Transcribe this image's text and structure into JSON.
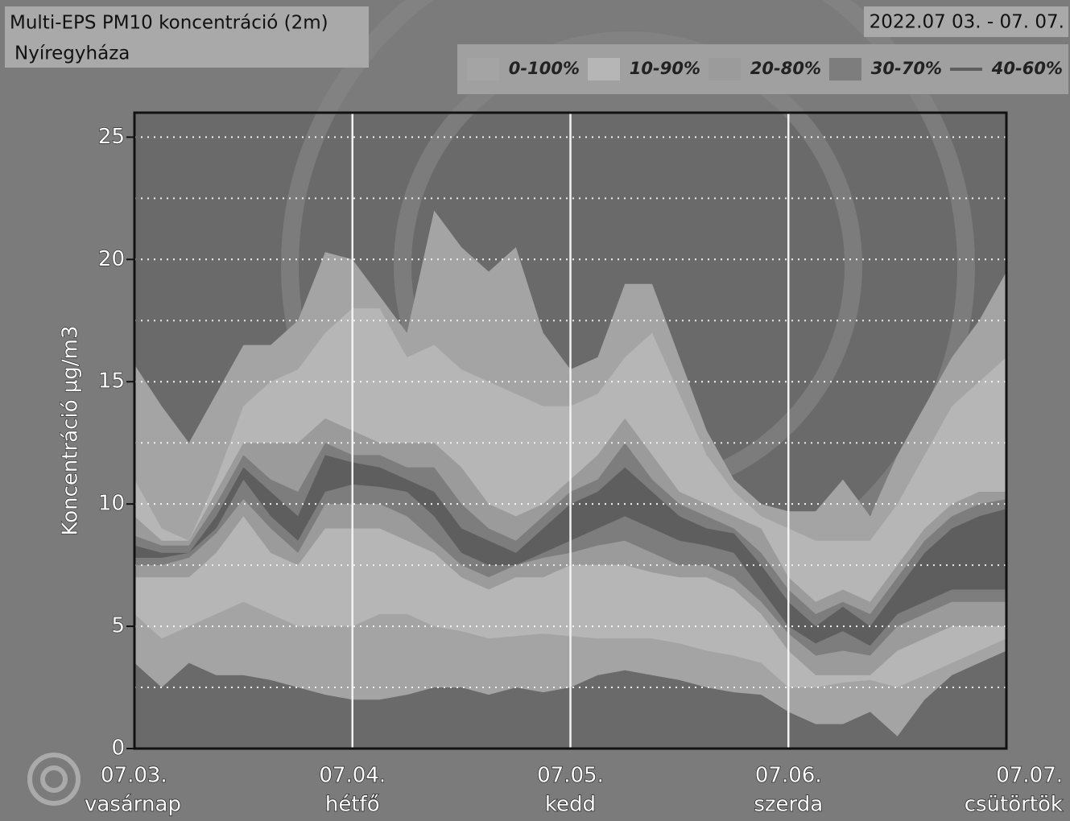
{
  "chart_data": {
    "type": "fan",
    "title": "Multi-EPS PM10 koncentráció (2m)",
    "subtitle": "Nyíregyháza",
    "date_range": "2022.07 03. - 07. 07.",
    "ylabel": "Koncentráció µg/m3",
    "categories": [
      "07.03.",
      null,
      null,
      null,
      null,
      null,
      null,
      null,
      "07.04.",
      null,
      null,
      null,
      null,
      null,
      null,
      null,
      "07.05.",
      null,
      null,
      null,
      null,
      null,
      null,
      null,
      "07.06.",
      null,
      null,
      null,
      null,
      null,
      null,
      null,
      "07.07."
    ],
    "weekdays": [
      "vasárnap",
      null,
      null,
      null,
      null,
      null,
      null,
      null,
      "hétfő",
      null,
      null,
      null,
      null,
      null,
      null,
      null,
      "kedd",
      null,
      null,
      null,
      null,
      null,
      null,
      null,
      "szerda",
      null,
      null,
      null,
      null,
      null,
      null,
      null,
      "csütörtök"
    ],
    "ylim": [
      0,
      26
    ],
    "yticks": [
      0,
      5,
      10,
      15,
      20,
      25
    ],
    "minor_yticks": [
      2.5,
      7.5,
      12.5,
      17.5,
      22.5
    ],
    "grid": true,
    "series": [
      {
        "name": "0-100%",
        "color": "#a4a4a4",
        "high": [
          15.7,
          14,
          12.5,
          14.5,
          16.5,
          16.5,
          17.5,
          20.3,
          20,
          18.5,
          17,
          22,
          20.5,
          19.5,
          20.5,
          17,
          15.5,
          16,
          19,
          19,
          16,
          13,
          11,
          10,
          9.7,
          9.7,
          11,
          9.5,
          12,
          14,
          16,
          17.5,
          19.5
        ],
        "low": [
          3.5,
          2.5,
          3.5,
          3,
          3,
          2.8,
          2.5,
          2.2,
          2,
          2,
          2.2,
          2.5,
          2.5,
          2.2,
          2.5,
          2.3,
          2.5,
          3,
          3.2,
          3,
          2.8,
          2.5,
          2.3,
          2.2,
          1.5,
          1,
          1,
          1.5,
          0.5,
          2,
          3,
          3.5,
          4
        ]
      },
      {
        "name": "10-90%",
        "color": "#b6b6b6",
        "high": [
          11,
          9,
          8.5,
          11,
          14,
          15,
          15.5,
          17,
          18,
          18,
          16,
          16.5,
          15.5,
          15,
          14.5,
          14,
          14,
          14.5,
          16,
          17,
          14.5,
          12,
          10.5,
          9.5,
          9,
          8.5,
          8.5,
          8.5,
          10,
          12,
          14,
          15,
          16
        ],
        "low": [
          5.5,
          4.5,
          5,
          5.5,
          6,
          5.5,
          5,
          5,
          5,
          5.5,
          5.5,
          5,
          4.8,
          4.5,
          4.6,
          4.7,
          4.6,
          4.5,
          4.5,
          4.5,
          4.3,
          4,
          3.8,
          3.5,
          2.5,
          2.5,
          2.7,
          2.8,
          2.5,
          3,
          3.5,
          4,
          4.5
        ]
      },
      {
        "name": "20-80%",
        "color": "#9b9b9b",
        "high": [
          9.5,
          8.5,
          8.5,
          10.5,
          12.5,
          12.5,
          12.5,
          13.5,
          13,
          12.5,
          12.5,
          12.5,
          11.5,
          10,
          9.5,
          10,
          11,
          12,
          13.5,
          12,
          10.5,
          10,
          9.5,
          9,
          7,
          6,
          6.5,
          6,
          7.5,
          9,
          10,
          10.5,
          10.5
        ],
        "low": [
          7,
          7,
          7,
          8,
          9.5,
          8,
          7.5,
          9,
          9,
          9,
          8.5,
          8,
          7,
          6.5,
          7,
          7,
          7.5,
          7.5,
          7.5,
          7.2,
          7,
          7,
          6.5,
          5.5,
          4,
          3,
          3,
          3,
          4,
          4.5,
          5,
          5,
          5
        ]
      },
      {
        "name": "30-70%",
        "color": "#7d7d7d",
        "high": [
          8.7,
          8.3,
          8.3,
          10,
          12,
          11,
          10.5,
          12.5,
          12,
          12,
          11.5,
          11.5,
          10,
          9,
          8.5,
          9.5,
          10.5,
          11,
          12.5,
          11,
          10,
          9.5,
          9,
          8,
          6.5,
          5.5,
          6,
          5.5,
          7,
          8.5,
          9.5,
          10,
          10.2
        ],
        "low": [
          7.5,
          7.5,
          7.8,
          8.8,
          10.2,
          9,
          8,
          10,
          10,
          10,
          9.5,
          8.5,
          7.5,
          7,
          7.5,
          7.8,
          8,
          8.3,
          8.5,
          8,
          7.5,
          7.5,
          7,
          6,
          4.7,
          3.8,
          4,
          3.8,
          5,
          5.5,
          6,
          6,
          6
        ]
      },
      {
        "name": "40-60%",
        "color": "#5e5e5e",
        "high": [
          8.3,
          8,
          8,
          9.5,
          11.5,
          10.5,
          9.5,
          12,
          11.7,
          11.5,
          11,
          10.5,
          9,
          8.5,
          8,
          9,
          10,
          10.5,
          11.5,
          10.5,
          9.5,
          9,
          8.8,
          7.5,
          6,
          5,
          5.8,
          5,
          6.5,
          8,
          9,
          9.5,
          9.8
        ],
        "low": [
          7.8,
          7.8,
          8,
          9,
          11,
          9.5,
          8.5,
          10.5,
          10.8,
          10.7,
          10.5,
          9.5,
          8,
          7.5,
          7.5,
          8,
          8.5,
          9,
          9.5,
          9,
          8.5,
          8.3,
          8,
          6.5,
          5,
          4.3,
          4.8,
          4.2,
          5.5,
          6,
          6.5,
          6.5,
          6.5
        ]
      }
    ]
  }
}
